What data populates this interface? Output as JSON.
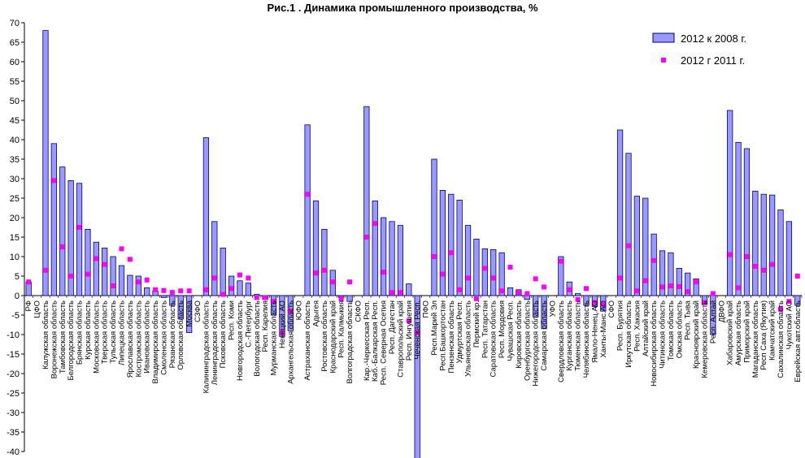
{
  "chart_data": {
    "type": "bar",
    "title": "Рис.1 . Динамика промышленного производства, %",
    "ylim": [
      -40,
      70
    ],
    "ytick_step": 5,
    "grid": false,
    "legend_position": "top-right",
    "colors": {
      "bar_fill": "#9999ff",
      "bar_stroke": "#000080",
      "marker": "#ff00ff"
    },
    "series": [
      {
        "name": "2012 к 2008 г.",
        "kind": "bar"
      },
      {
        "name": "2012 г 2011 г.",
        "kind": "marker"
      }
    ],
    "categories": [
      {
        "label": "РФ",
        "bar": 3.5,
        "marker": 3.5
      },
      {
        "label": "ЦФО",
        "bar": null,
        "marker": null
      },
      {
        "label": "Калужская область",
        "bar": 68,
        "marker": 6.5
      },
      {
        "label": "Воронежская область",
        "bar": 39,
        "marker": 29.5
      },
      {
        "label": "Тамбовская область",
        "bar": 33,
        "marker": 12.5
      },
      {
        "label": "Белгородская область",
        "bar": 29.5,
        "marker": 5
      },
      {
        "label": "Брянская область",
        "bar": 28.8,
        "marker": 17.5
      },
      {
        "label": "Курская область",
        "bar": 17,
        "marker": 5.5
      },
      {
        "label": "Московская область",
        "bar": 13.7,
        "marker": 9.5
      },
      {
        "label": "Тверская область",
        "bar": 12.2,
        "marker": 8
      },
      {
        "label": "Тульская область",
        "bar": 10,
        "marker": 2.5
      },
      {
        "label": "Липецкая область",
        "bar": 7.7,
        "marker": 12
      },
      {
        "label": "Ярославская область",
        "bar": 5.2,
        "marker": 9.3
      },
      {
        "label": "Костромская область",
        "bar": 5,
        "marker": 3.5
      },
      {
        "label": "Ивановская область",
        "bar": 2,
        "marker": 4
      },
      {
        "label": "Владимирская область",
        "bar": 1.2,
        "marker": 1.5
      },
      {
        "label": "Смоленская область",
        "bar": -0.5,
        "marker": 1.3
      },
      {
        "label": "Рязанская область",
        "bar": -2.5,
        "marker": 0.8
      },
      {
        "label": "Орловская область",
        "bar": -6,
        "marker": 1.2
      },
      {
        "label": "Москва",
        "bar": -9.5,
        "marker": 1.2
      },
      {
        "label": "СЗФО",
        "bar": null,
        "marker": null
      },
      {
        "label": "Калининградская область",
        "bar": 40.5,
        "marker": 1.5
      },
      {
        "label": "Ленинградская область",
        "bar": 19,
        "marker": 4.5
      },
      {
        "label": "Псковская область",
        "bar": 12.2,
        "marker": 0.3
      },
      {
        "label": "Респ. Коми",
        "bar": 5,
        "marker": 1.8
      },
      {
        "label": "Новгородская область",
        "bar": 3.8,
        "marker": 5.3
      },
      {
        "label": "С.-Петербург",
        "bar": 3.2,
        "marker": 4.5
      },
      {
        "label": "Вологодская область",
        "bar": 0.3,
        "marker": -0.5
      },
      {
        "label": "Респ. Карелия",
        "bar": -1,
        "marker": -0.5
      },
      {
        "label": "Мурманская область",
        "bar": -5,
        "marker": -1.5
      },
      {
        "label": "Ненецкий АО",
        "bar": -10.5,
        "marker": -9.5
      },
      {
        "label": "Архангельская область",
        "bar": -9,
        "marker": -4
      },
      {
        "label": "ЮФО",
        "bar": null,
        "marker": null
      },
      {
        "label": "Астраханская область",
        "bar": 43.8,
        "marker": 26
      },
      {
        "label": "Адыгея",
        "bar": 24.3,
        "marker": 5.8
      },
      {
        "label": "Ростовская область",
        "bar": 17,
        "marker": 6.5
      },
      {
        "label": "Краснодарский край",
        "bar": 6.5,
        "marker": 3.5
      },
      {
        "label": "Респ. Калмыкия",
        "bar": -0.5,
        "marker": -0.8
      },
      {
        "label": "Волгоградская область",
        "bar": -1.5,
        "marker": 3.5
      },
      {
        "label": "СКФО",
        "bar": null,
        "marker": null
      },
      {
        "label": "Кар.-Черкесская Респ.",
        "bar": 48.5,
        "marker": 15
      },
      {
        "label": "Каб.-Балкарская Респ.",
        "bar": 24.3,
        "marker": 18.5
      },
      {
        "label": "Респ. Северная Осетия",
        "bar": 20,
        "marker": 6
      },
      {
        "label": "Респ. Дагестан",
        "bar": 19,
        "marker": 0.8
      },
      {
        "label": "Ставропольский край",
        "bar": 18,
        "marker": 0.8
      },
      {
        "label": "Респ. Ингушетия",
        "bar": 3,
        "marker": -6.5
      },
      {
        "label": "Чеченская Респ.",
        "bar": -42,
        "marker": -9.5
      },
      {
        "label": "ПФО",
        "bar": null,
        "marker": null
      },
      {
        "label": "Респ.Марий Эл",
        "bar": 35,
        "marker": 10
      },
      {
        "label": "Респ.Башкортостан",
        "bar": 27,
        "marker": 5.5
      },
      {
        "label": "Пензенская область",
        "bar": 26,
        "marker": 11
      },
      {
        "label": "Удмуртская Респ.",
        "bar": 24.5,
        "marker": 1.5
      },
      {
        "label": "Ульяновская область",
        "bar": 18,
        "marker": 4.5
      },
      {
        "label": "Пермский кр.",
        "bar": 14.5,
        "marker": -0.8
      },
      {
        "label": "Респ. Татарстан",
        "bar": 12,
        "marker": 7
      },
      {
        "label": "Саратовская область",
        "bar": 11.8,
        "marker": 4.5
      },
      {
        "label": "Респ. Мордовия",
        "bar": 11,
        "marker": 1.2
      },
      {
        "label": "Чувашская Респ.",
        "bar": 2,
        "marker": 7.3
      },
      {
        "label": "Кировская область",
        "bar": 1.5,
        "marker": 0.8
      },
      {
        "label": "Оренбургская область",
        "bar": -1,
        "marker": 0.5
      },
      {
        "label": "Нижегородская область",
        "bar": -5.5,
        "marker": 4.3
      },
      {
        "label": "Самарская область",
        "bar": -8.5,
        "marker": 2.2
      },
      {
        "label": "УФО",
        "bar": null,
        "marker": null
      },
      {
        "label": "Свердловская область",
        "bar": 10,
        "marker": 8.8
      },
      {
        "label": "Курганская область",
        "bar": 3.5,
        "marker": 1.5
      },
      {
        "label": "Тюменская область",
        "bar": 0.5,
        "marker": -1
      },
      {
        "label": "Челябинская область",
        "bar": -2.5,
        "marker": 1.8
      },
      {
        "label": "Ямало-Ненец.АО",
        "bar": -2.8,
        "marker": -1.8
      },
      {
        "label": "Ханты-Манс.АО",
        "bar": -4,
        "marker": -2.3
      },
      {
        "label": "СФО",
        "bar": null,
        "marker": null
      },
      {
        "label": "Респ. Бурятия",
        "bar": 42.5,
        "marker": 4.5
      },
      {
        "label": "Иркутская область",
        "bar": 36.5,
        "marker": 12.8
      },
      {
        "label": "Респ. Хакасия",
        "bar": 25.5,
        "marker": 1.2
      },
      {
        "label": "Алтайский край",
        "bar": 25,
        "marker": 3.8
      },
      {
        "label": "Новосибирская область",
        "bar": 15.8,
        "marker": 9
      },
      {
        "label": "Читинская область",
        "bar": 11.5,
        "marker": 2.2
      },
      {
        "label": "Томская область",
        "bar": 11,
        "marker": 2.5
      },
      {
        "label": "Омская область",
        "bar": 7,
        "marker": 2.3
      },
      {
        "label": "Респ. Тыва",
        "bar": 5.8,
        "marker": 1
      },
      {
        "label": "Красноярский край",
        "bar": 4.3,
        "marker": 3.5
      },
      {
        "label": "Кемеровская область",
        "bar": -2.3,
        "marker": -1.8
      },
      {
        "label": "Респ. Алтай",
        "bar": -10,
        "marker": 0.5
      },
      {
        "label": "ДВФО",
        "bar": null,
        "marker": null
      },
      {
        "label": "Хабаровский край",
        "bar": 47.5,
        "marker": 10.5
      },
      {
        "label": "Амурская область",
        "bar": 39.3,
        "marker": 2
      },
      {
        "label": "Приморский край",
        "bar": 37.7,
        "marker": 10
      },
      {
        "label": "Магаданская область",
        "bar": 26.8,
        "marker": 7.5
      },
      {
        "label": "Респ Саха (Якутия)",
        "bar": 26,
        "marker": 6.5
      },
      {
        "label": "Камчатский край",
        "bar": 25.8,
        "marker": 8
      },
      {
        "label": "Сахалинская область",
        "bar": 22,
        "marker": -3.5
      },
      {
        "label": "Чукотский АО",
        "bar": 19,
        "marker": -1.5
      },
      {
        "label": "Еврейская авт.область",
        "bar": -2.5,
        "marker": 5
      }
    ]
  }
}
